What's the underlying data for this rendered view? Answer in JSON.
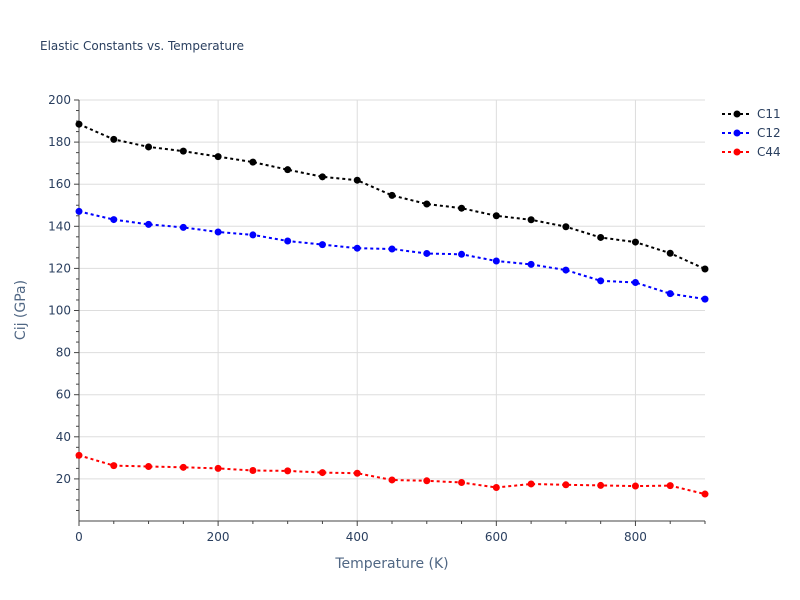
{
  "chart_data": {
    "type": "line",
    "title": "Elastic Constants vs. Temperature",
    "xlabel": "Temperature (K)",
    "ylabel": "Cij (GPa)",
    "xlim": [
      0,
      900
    ],
    "ylim": [
      0,
      200
    ],
    "x_ticks": [
      0,
      200,
      400,
      600,
      800
    ],
    "y_ticks": [
      20,
      40,
      60,
      80,
      100,
      120,
      140,
      160,
      180,
      200
    ],
    "grid": true,
    "legend_position": "top-right",
    "x": [
      0,
      50,
      100,
      150,
      200,
      250,
      300,
      350,
      400,
      450,
      500,
      550,
      600,
      650,
      700,
      750,
      800,
      850,
      900
    ],
    "series": [
      {
        "name": "C11",
        "color": "#000000",
        "values": [
          188.5,
          181.3,
          177.7,
          175.7,
          173.1,
          170.5,
          166.9,
          163.5,
          161.9,
          154.7,
          150.6,
          148.6,
          145.0,
          143.1,
          139.8,
          134.7,
          132.5,
          127.2,
          119.7
        ]
      },
      {
        "name": "C12",
        "color": "#0000ff",
        "values": [
          147.1,
          143.2,
          140.9,
          139.5,
          137.3,
          135.9,
          133.0,
          131.3,
          129.6,
          129.2,
          127.1,
          126.7,
          123.5,
          121.9,
          119.2,
          114.1,
          113.3,
          108.0,
          105.4
        ]
      },
      {
        "name": "C44",
        "color": "#ff0000",
        "values": [
          31.2,
          26.3,
          25.9,
          25.5,
          25.0,
          24.0,
          23.8,
          23.0,
          22.7,
          19.5,
          19.1,
          18.3,
          15.9,
          17.6,
          17.2,
          16.9,
          16.6,
          16.8,
          12.8
        ]
      }
    ]
  }
}
